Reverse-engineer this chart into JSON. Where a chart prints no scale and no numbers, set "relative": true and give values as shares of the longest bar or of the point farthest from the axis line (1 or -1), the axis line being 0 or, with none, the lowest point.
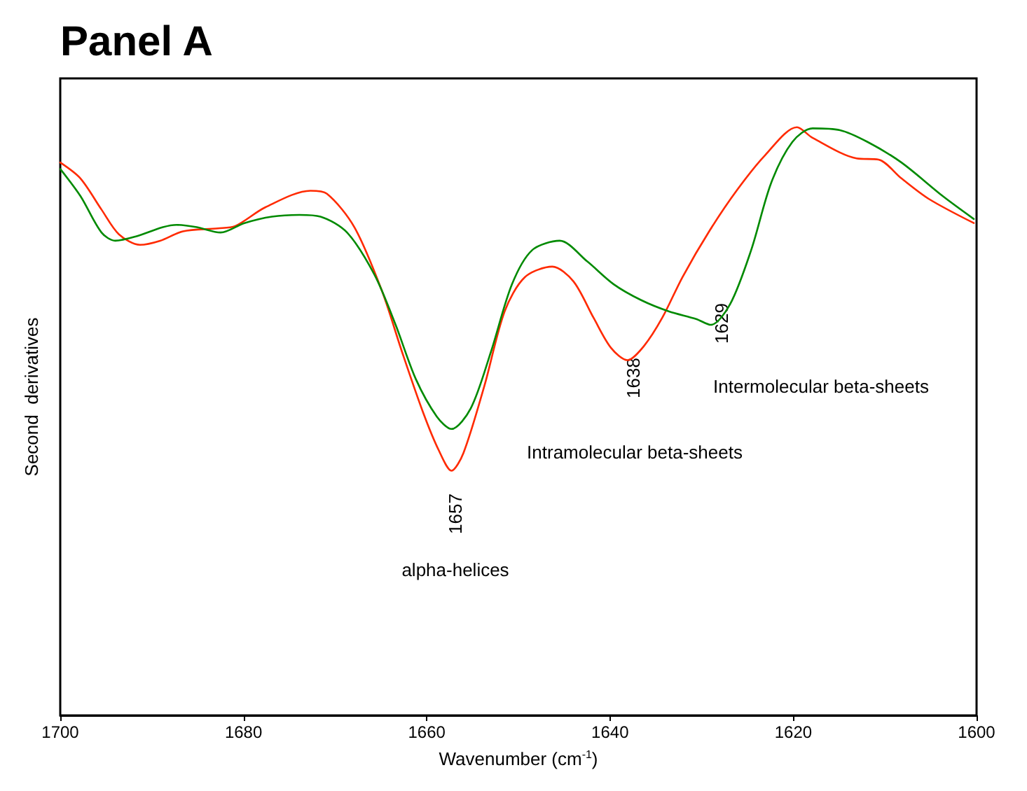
{
  "chart_data": {
    "type": "line",
    "title": "Panel A",
    "xlabel": "Wavenumber (cm$^{-1}$)",
    "ylabel": "Second  derivatives",
    "relative": true,
    "xlim": [
      1700,
      1600
    ],
    "xticks": [
      1700,
      1680,
      1660,
      1640,
      1620,
      1600
    ],
    "grid": false,
    "marker": "none",
    "line_style": "solid",
    "series": [
      {
        "color": "#ff2a00",
        "x": [
          1700,
          1697.8,
          1695.5,
          1693.6,
          1691.3,
          1689.1,
          1686.6,
          1682.8,
          1680.9,
          1677.6,
          1672.7,
          1670.9,
          1667.9,
          1664.9,
          1662.7,
          1660.4,
          1658.7,
          1657.3,
          1656,
          1653.7,
          1651.5,
          1649.3,
          1646.3,
          1644,
          1641.8,
          1639.9,
          1638.1,
          1636.3,
          1634.3,
          1632.1,
          1629.1,
          1626.1,
          1623.1,
          1619.6,
          1617.9,
          1613.1,
          1610.7,
          1608.2,
          1605.2,
          1600.3
        ],
        "values": [
          0.94,
          0.913,
          0.86,
          0.818,
          0.8,
          0.807,
          0.823,
          0.828,
          0.832,
          0.864,
          0.892,
          0.887,
          0.83,
          0.722,
          0.618,
          0.515,
          0.451,
          0.416,
          0.446,
          0.561,
          0.687,
          0.745,
          0.763,
          0.738,
          0.676,
          0.625,
          0.604,
          0.628,
          0.676,
          0.745,
          0.825,
          0.894,
          0.952,
          1,
          0.982,
          0.947,
          0.945,
          0.913,
          0.878,
          0.837
        ]
      },
      {
        "color": "#008a00",
        "x": [
          1700,
          1697.8,
          1695.5,
          1694,
          1691.8,
          1688.8,
          1687.3,
          1685.1,
          1682.5,
          1679.9,
          1676.9,
          1673.9,
          1671.6,
          1668.7,
          1665.7,
          1663.4,
          1661.2,
          1658.9,
          1657.3,
          1655.2,
          1653,
          1650.7,
          1648.5,
          1645.5,
          1642.5,
          1639.6,
          1636.6,
          1633.6,
          1630.6,
          1629,
          1626.9,
          1624.6,
          1622.4,
          1620.1,
          1617.9,
          1614.9,
          1611.9,
          1608.2,
          1603.7,
          1600.3
        ],
        "values": [
          0.929,
          0.883,
          0.821,
          0.807,
          0.814,
          0.83,
          0.834,
          0.83,
          0.821,
          0.837,
          0.848,
          0.851,
          0.848,
          0.821,
          0.749,
          0.664,
          0.572,
          0.508,
          0.487,
          0.522,
          0.618,
          0.733,
          0.791,
          0.807,
          0.772,
          0.733,
          0.706,
          0.687,
          0.674,
          0.664,
          0.699,
          0.791,
          0.906,
          0.975,
          0.998,
          0.995,
          0.975,
          0.94,
          0.883,
          0.844
        ]
      }
    ],
    "annotations": [
      "1657",
      "alpha-helices",
      "Intramolecular beta-sheets",
      "1638",
      "1629",
      "Intermolecular beta-sheets"
    ]
  }
}
